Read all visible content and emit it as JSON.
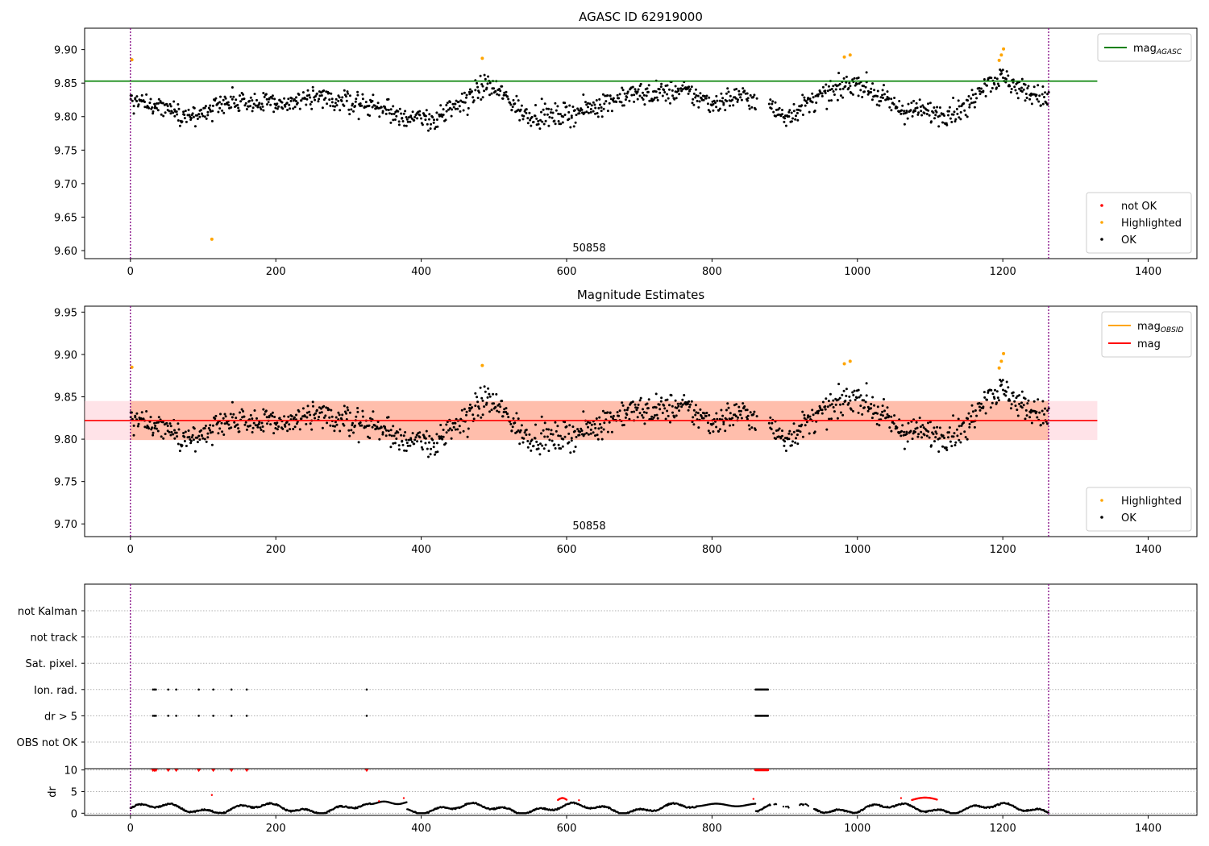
{
  "chart_data": [
    {
      "type": "scatter",
      "title": "AGASC ID 62919000",
      "xlim": [
        -63,
        1467
      ],
      "ylim": [
        9.588,
        9.932
      ],
      "x_ticks": [
        0,
        200,
        400,
        600,
        800,
        1000,
        1200,
        1400
      ],
      "y_ticks": [
        "9.60",
        "9.65",
        "9.70",
        "9.75",
        "9.80",
        "9.85",
        "9.90"
      ],
      "grid": false,
      "vlines": [
        0,
        1263
      ],
      "hline": {
        "y": 9.853,
        "x_range": [
          -63,
          1330
        ],
        "color": "#008000"
      },
      "annotation": {
        "text": "50858",
        "x": 633,
        "y": 9.6
      },
      "highlighted_points": [
        {
          "x": 2,
          "y": 9.885
        },
        {
          "x": 112,
          "y": 9.617
        },
        {
          "x": 484,
          "y": 9.887
        },
        {
          "x": 982,
          "y": 9.889
        },
        {
          "x": 990,
          "y": 9.892
        },
        {
          "x": 1195,
          "y": 9.884
        },
        {
          "x": 1198,
          "y": 9.892
        },
        {
          "x": 1201,
          "y": 9.901
        }
      ],
      "ok_series": {
        "n": 1240,
        "x_range": [
          0,
          1263
        ],
        "mean": 9.822,
        "spread": 0.017
      },
      "legend_lines": [
        {
          "label": "mag",
          "sub": "AGASC",
          "color": "#008000"
        }
      ],
      "legend_points": [
        {
          "label": "not OK",
          "color": "#ff0000"
        },
        {
          "label": "Highlighted",
          "color": "#ffa500"
        },
        {
          "label": "OK",
          "color": "#000000"
        }
      ]
    },
    {
      "type": "scatter",
      "title": "Magnitude Estimates",
      "xlim": [
        -63,
        1467
      ],
      "ylim": [
        9.685,
        9.957
      ],
      "x_ticks": [
        0,
        200,
        400,
        600,
        800,
        1000,
        1200,
        1400
      ],
      "y_ticks": [
        "9.70",
        "9.75",
        "9.80",
        "9.85",
        "9.90",
        "9.95"
      ],
      "grid": false,
      "vlines": [
        0,
        1263
      ],
      "hline": {
        "y": 9.822,
        "x_range": [
          -63,
          1330
        ],
        "color": "#ff0000"
      },
      "bands": [
        {
          "y0": 9.799,
          "y1": 9.845,
          "x_range": [
            -63,
            1330
          ],
          "color": "#ffc0cb"
        },
        {
          "y0": 9.799,
          "y1": 9.845,
          "x_range": [
            0,
            1263
          ],
          "color": "#ffa07a"
        }
      ],
      "annotation": {
        "text": "50858",
        "x": 633,
        "y": 9.695
      },
      "highlighted_points": [
        {
          "x": 2,
          "y": 9.885
        },
        {
          "x": 484,
          "y": 9.887
        },
        {
          "x": 982,
          "y": 9.889
        },
        {
          "x": 990,
          "y": 9.892
        },
        {
          "x": 1195,
          "y": 9.884
        },
        {
          "x": 1198,
          "y": 9.892
        },
        {
          "x": 1201,
          "y": 9.901
        }
      ],
      "ok_series": {
        "n": 1240,
        "x_range": [
          0,
          1263
        ],
        "mean": 9.822,
        "spread": 0.017
      },
      "legend_lines": [
        {
          "label": "mag",
          "sub": "OBSID",
          "color": "#ffa500"
        },
        {
          "label": "mag",
          "sub": "",
          "color": "#ff0000"
        }
      ],
      "legend_points": [
        {
          "label": "Highlighted",
          "color": "#ffa500"
        },
        {
          "label": "OK",
          "color": "#000000"
        }
      ]
    },
    {
      "type": "scatter",
      "title": "",
      "xlim": [
        -63,
        1467
      ],
      "x_ticks": [
        0,
        200,
        400,
        600,
        800,
        1000,
        1200,
        1400
      ],
      "flag_labels": [
        "not Kalman",
        "not track",
        "Sat. pixel.",
        "Ion. rad.",
        "dr > 5",
        "OBS not OK"
      ],
      "flag_points": {
        "Ion. rad.": [
          31,
          33,
          35,
          52,
          63,
          94,
          114,
          139,
          160,
          325
        ],
        "dr > 5": [
          31,
          33,
          35,
          52,
          63,
          94,
          114,
          139,
          160,
          325
        ]
      },
      "flag_cluster": {
        "x_range": [
          860,
          878
        ],
        "rows": [
          "Ion. rad.",
          "dr > 5"
        ]
      },
      "dr": {
        "ylabel": "dr",
        "ylim": [
          -0.5,
          10.3
        ],
        "y_ticks": [
          0,
          5,
          10
        ],
        "red_points_at_10": [
          31,
          33,
          35,
          52,
          63,
          94,
          114,
          139,
          160,
          325
        ],
        "red_cluster_at_10": [
          860,
          878
        ],
        "red_arcs": [
          {
            "x0": 588,
            "x1": 600,
            "y0": 3.0,
            "y1": 3.5
          },
          {
            "x0": 1075,
            "x1": 1110,
            "y0": 3.0,
            "y1": 3.6
          }
        ],
        "red_singles": [
          {
            "x": 112,
            "y": 4.2
          },
          {
            "x": 342,
            "y": 2.8
          },
          {
            "x": 376,
            "y": 3.5
          },
          {
            "x": 617,
            "y": 3.0
          },
          {
            "x": 857,
            "y": 3.3
          },
          {
            "x": 1060,
            "y": 3.5
          }
        ]
      },
      "vlines": [
        0,
        1263
      ]
    }
  ]
}
